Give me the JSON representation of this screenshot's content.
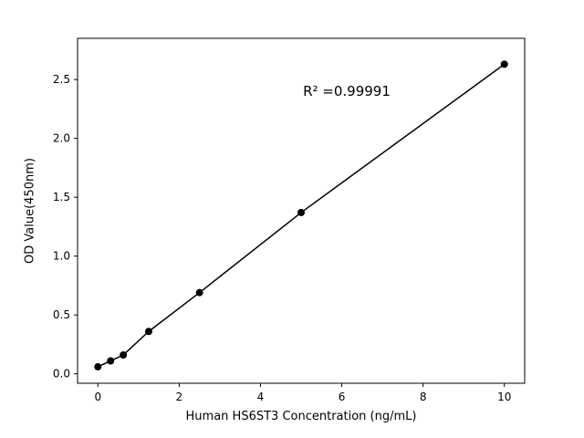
{
  "chart_data": {
    "type": "scatter",
    "title": "",
    "xlabel": "Human HS6ST3 Concentration (ng/mL)",
    "ylabel": "OD Value(450nm)",
    "annotation": {
      "text": "R² =0.99991",
      "x": 6.1,
      "y": 2.35
    },
    "x": [
      0,
      0.313,
      0.625,
      1.25,
      2.5,
      5,
      10
    ],
    "y": [
      0.06,
      0.11,
      0.16,
      0.36,
      0.69,
      1.37,
      2.63
    ],
    "xlim": [
      -0.5,
      10.5
    ],
    "ylim": [
      -0.08,
      2.85
    ],
    "xticks": [
      0,
      2,
      4,
      6,
      8,
      10
    ],
    "xtick_labels": [
      "0",
      "2",
      "4",
      "6",
      "8",
      "10"
    ],
    "yticks": [
      0.0,
      0.5,
      1.0,
      1.5,
      2.0,
      2.5
    ],
    "ytick_labels": [
      "0.0",
      "0.5",
      "1.0",
      "1.5",
      "2.0",
      "2.5"
    ],
    "line_color": "#000000",
    "marker_color": "#000000",
    "marker_size": 4,
    "grid": false,
    "legend": "none",
    "background": "#ffffff"
  }
}
